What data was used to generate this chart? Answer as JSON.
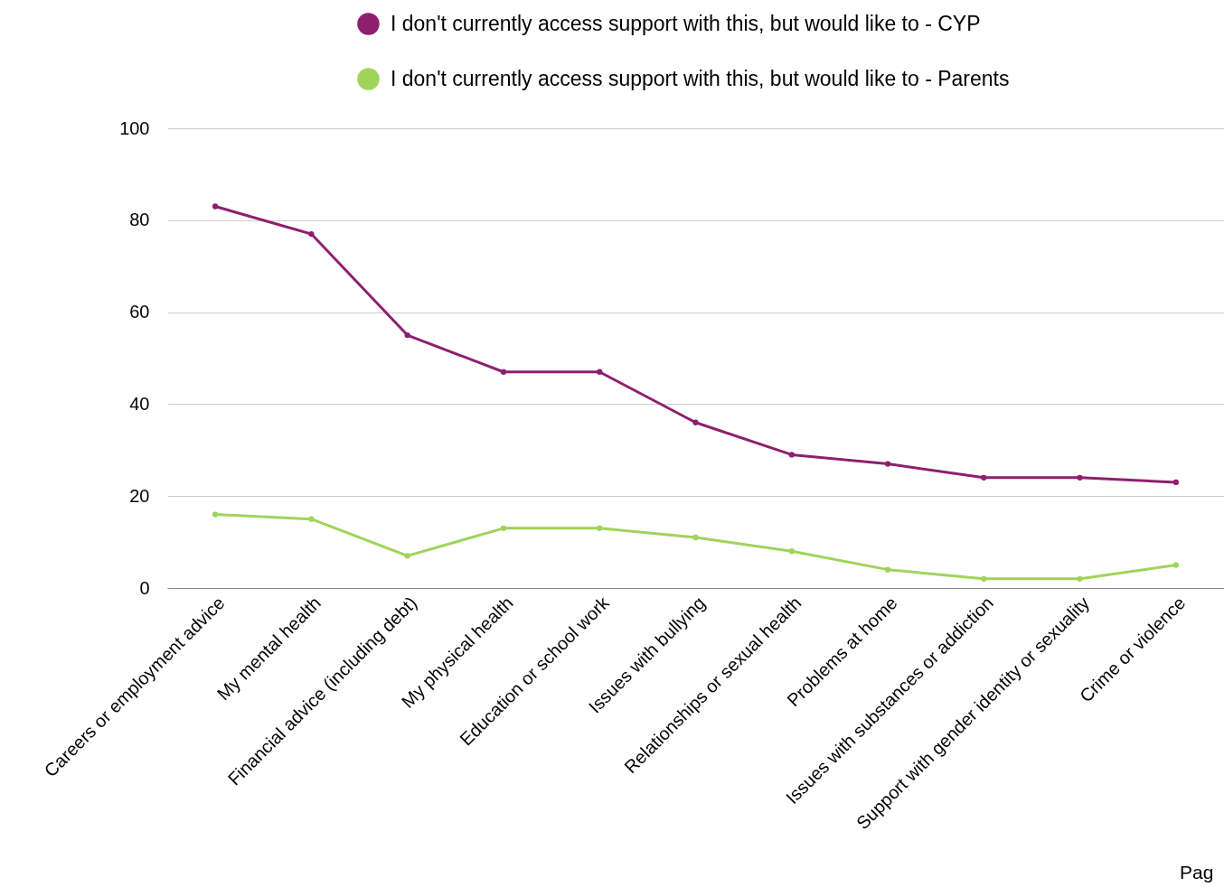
{
  "chart_data": {
    "type": "line",
    "categories": [
      "Careers or employment advice",
      "My mental health",
      "Financial advice (including debt)",
      "My physical health",
      "Education or school work",
      "Issues with bullying",
      "Relationships or sexual health",
      "Problems at home",
      "Issues with substances or addiction",
      "Support with gender identity or sexuality",
      "Crime or violence"
    ],
    "series": [
      {
        "name": "I don't currently access support with this, but would like to - CYP",
        "color": "#8e1f6e",
        "values": [
          83,
          77,
          55,
          47,
          47,
          36,
          29,
          27,
          24,
          24,
          23
        ]
      },
      {
        "name": "I don't currently access support with this, but would like to - Parents",
        "color": "#9fd45a",
        "values": [
          16,
          15,
          7,
          13,
          13,
          11,
          8,
          4,
          2,
          2,
          5
        ]
      }
    ],
    "ylim": [
      0,
      100
    ],
    "yticks": [
      0,
      20,
      40,
      60,
      80,
      100
    ],
    "grid": "y",
    "legend": "top",
    "marker": "circle",
    "line_style": "solid",
    "annotations": [
      "Pag"
    ]
  }
}
